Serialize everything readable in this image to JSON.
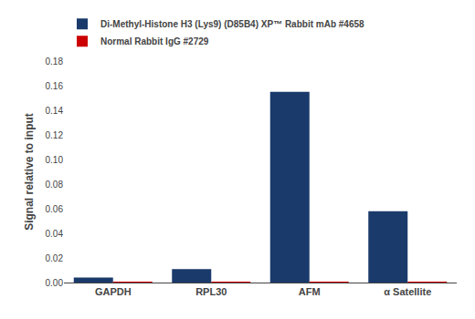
{
  "chart_data": {
    "type": "bar",
    "categories": [
      "GAPDH",
      "RPL30",
      "AFM",
      "α Satellite"
    ],
    "series": [
      {
        "name": "Di-Methyl-Histone H3 (Lys9) (D85B4) XP™ Rabbit mAb #4658",
        "color": "#1a3a6b",
        "values": [
          0.004,
          0.011,
          0.155,
          0.058
        ]
      },
      {
        "name": "Normal Rabbit IgG #2729",
        "color": "#cc0000",
        "values": [
          0.0005,
          0.0005,
          0.0005,
          0.0005
        ]
      }
    ],
    "ylabel": "Signal relative to input",
    "ylim": [
      0,
      0.18
    ],
    "yticks": [
      {
        "value": 0,
        "label": "0.00"
      },
      {
        "value": 0.02,
        "label": "0.02"
      },
      {
        "value": 0.04,
        "label": "0.04"
      },
      {
        "value": 0.06,
        "label": "0.06"
      },
      {
        "value": 0.08,
        "label": "0.08"
      },
      {
        "value": 0.1,
        "label": "0.10"
      },
      {
        "value": 0.12,
        "label": "0.12"
      },
      {
        "value": 0.14,
        "label": "0.14"
      },
      {
        "value": 0.16,
        "label": "0.16"
      },
      {
        "value": 0.18,
        "label": "0.18"
      }
    ],
    "grid": false,
    "legend": "upper left"
  }
}
